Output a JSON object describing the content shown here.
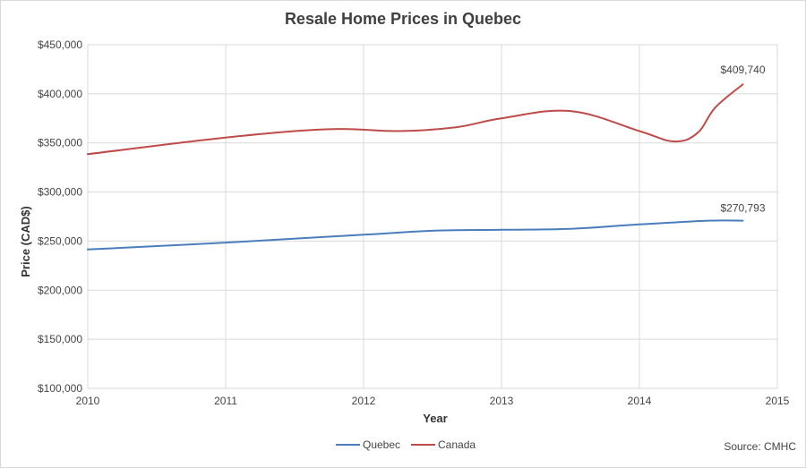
{
  "chart_data": {
    "type": "line",
    "title": "Resale Home Prices in Quebec",
    "xlabel": "Year",
    "ylabel": "Price (CAD$)",
    "xlim": [
      2010,
      2015
    ],
    "ylim": [
      100000,
      450000
    ],
    "x_ticks": [
      "2010",
      "2011",
      "2012",
      "2013",
      "2014",
      "2015"
    ],
    "y_ticks": [
      "$100,000",
      "$150,000",
      "$200,000",
      "$250,000",
      "$300,000",
      "$350,000",
      "$400,000",
      "$450,000"
    ],
    "grid": true,
    "legend_position": "bottom",
    "series": [
      {
        "name": "Quebec",
        "color": "#4a7ebb",
        "x": [
          2010,
          2011,
          2012,
          2012.5,
          2013,
          2013.5,
          2014,
          2014.5,
          2014.75
        ],
        "values": [
          241500,
          248500,
          256500,
          260500,
          261500,
          262500,
          267000,
          270793,
          270793
        ]
      },
      {
        "name": "Canada",
        "color": "#be4b48",
        "x": [
          2010,
          2011,
          2011.75,
          2012.25,
          2012.67,
          2013,
          2013.5,
          2014,
          2014.25,
          2014.42,
          2014.55,
          2014.75
        ],
        "values": [
          338500,
          355500,
          364000,
          362000,
          366000,
          375000,
          382500,
          362000,
          351500,
          360000,
          386000,
          409740
        ]
      }
    ],
    "annotations": [
      "$409,740",
      "$270,793"
    ],
    "source": "Source: CMHC"
  }
}
